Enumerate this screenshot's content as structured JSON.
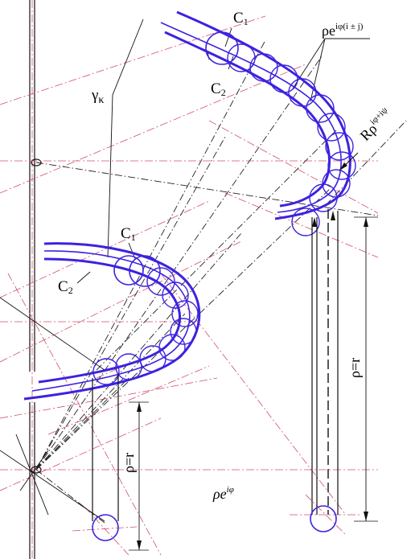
{
  "labels": {
    "c1_top": "C",
    "c1_top_sub": "1",
    "c2_top": "C",
    "c2_top_sub": "2",
    "c1_left": "C",
    "c1_left_sub": "1",
    "c2_left": "C",
    "c2_left_sub": "2",
    "gamma": "γ",
    "gamma_sub": "κ",
    "rho_exp_base": "ρe",
    "rho_exp_sup": "iφ(i ± j)",
    "R_rho_base": "Rρ",
    "R_rho_sup": "iφ+iψ",
    "rho_r_left": "ρ=r",
    "rho_r_right": "ρ=r",
    "rho_e_base": "ρe",
    "rho_e_sup": "iφ"
  },
  "colors": {
    "curve": "#3d22e0",
    "construction": "#d2506b",
    "lines": "#111111"
  }
}
